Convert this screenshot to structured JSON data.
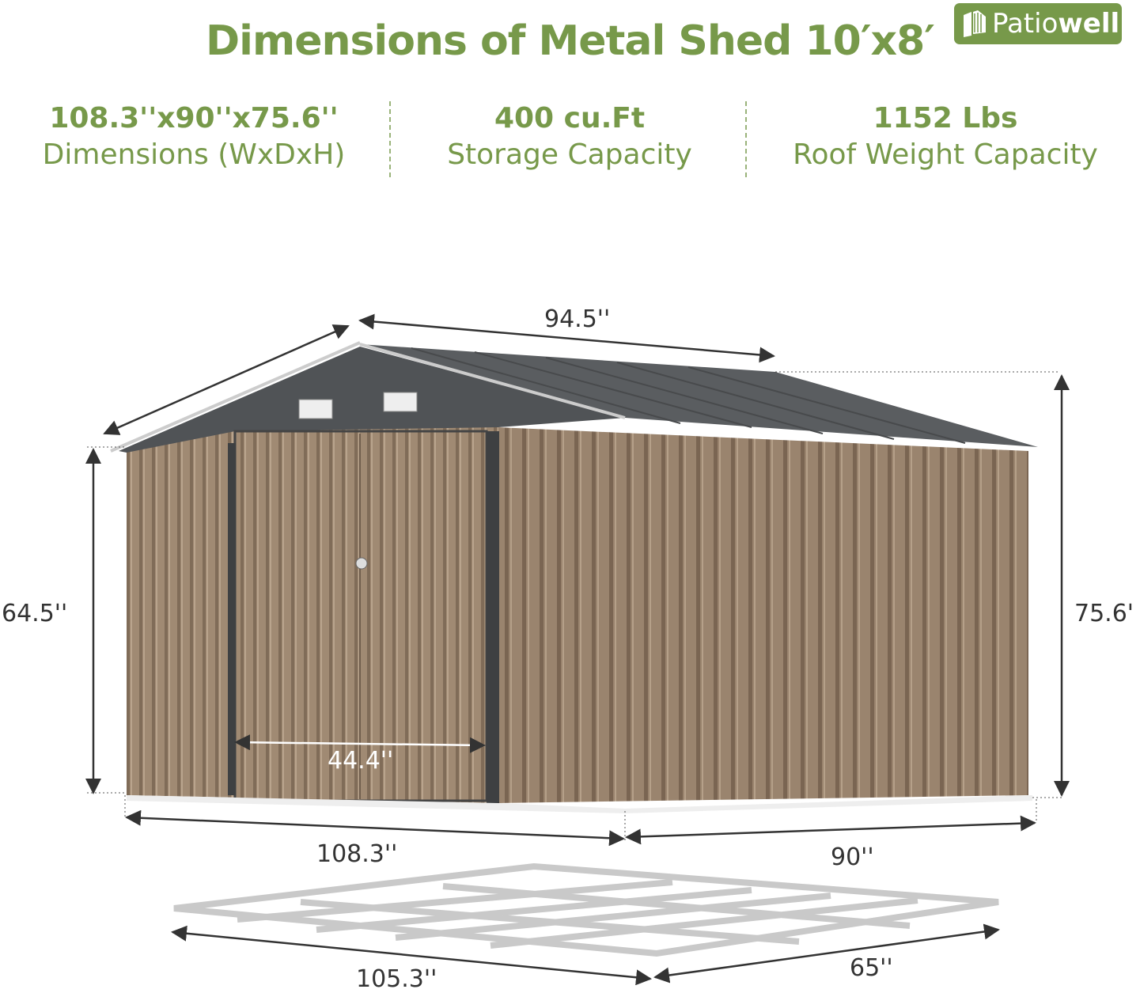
{
  "title": "Dimensions of Metal Shed 10′x8′",
  "logo": {
    "text_light": "Patio",
    "text_bold": "well"
  },
  "specs": [
    {
      "value": "108.3''x90''x75.6''",
      "label": "Dimensions (WxDxH)"
    },
    {
      "value": "400 cu.Ft",
      "label": "Storage Capacity"
    },
    {
      "value": "1152 Lbs",
      "label": "Roof Weight Capacity"
    }
  ],
  "dimensions": {
    "roof_depth": "94.5''",
    "wall_height": "64.5''",
    "total_height": "75.6'",
    "door_width": "44.4''",
    "width": "108.3''",
    "depth": "90''",
    "base_width": "105.3''",
    "base_depth": "65''"
  },
  "colors": {
    "accent": "#77994a",
    "wall": "#9c8670",
    "roof": "#55585b"
  }
}
